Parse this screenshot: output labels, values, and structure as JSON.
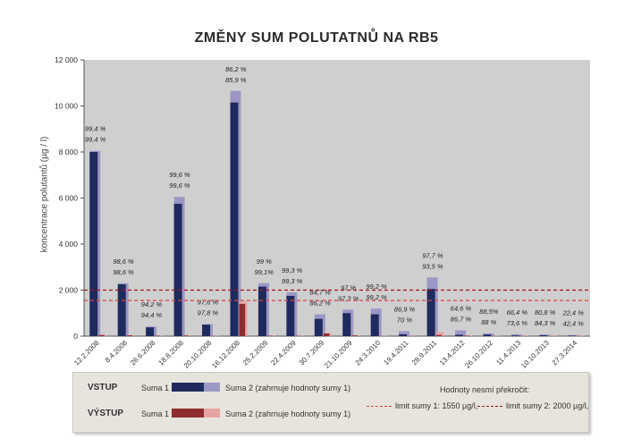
{
  "chart_data": {
    "type": "bar",
    "title": "ZMĚNY SUM POLUTATNŮ NA RB5",
    "ylabel": "koncentrace polutantů (µg / l)",
    "xlabel": "",
    "ylim": [
      0,
      12000
    ],
    "yticks": [
      "0",
      "2 000",
      "4 000",
      "6 000",
      "8 000",
      "10 000",
      "12 000"
    ],
    "categories": [
      "12.2.2008",
      "8.4.2008",
      "26.6.2008",
      "18.8.2008",
      "20.10.2008",
      "16.12.2008",
      "25.2.2009",
      "22.4.2009",
      "30.7.2009",
      "21.10.2009",
      "24.3.2010",
      "19.4.2011",
      "28.9.2011",
      "13.4.2012",
      "26.10.2012",
      "11.4.2013",
      "10.10.2013",
      "27.3.2014"
    ],
    "series": [
      {
        "name": "VSTUP Suma 1",
        "color": "#1f2a5e",
        "values": [
          8000,
          2250,
          380,
          5750,
          500,
          10150,
          2150,
          1750,
          750,
          1000,
          950,
          80,
          2050,
          60,
          70,
          30,
          40,
          20
        ]
      },
      {
        "name": "VSTUP Suma 2 (zahrnuje hodnoty sumy 1)",
        "color": "#9b97c6",
        "values": [
          8050,
          2300,
          420,
          6050,
          520,
          10650,
          2300,
          1900,
          950,
          1150,
          1200,
          220,
          2550,
          250,
          120,
          80,
          70,
          50
        ]
      },
      {
        "name": "VÝSTUP Suma 1",
        "color": "#8e2b2c",
        "values": [
          50,
          35,
          20,
          25,
          10,
          1400,
          20,
          15,
          115,
          30,
          10,
          5,
          50,
          20,
          10,
          10,
          10,
          10
        ]
      },
      {
        "name": "VÝSTUP Suma 2 (zahrnuje hodnoty sumy 1)",
        "color": "#e8a3a3",
        "values": [
          60,
          40,
          25,
          30,
          15,
          1500,
          25,
          20,
          140,
          35,
          15,
          10,
          170,
          30,
          15,
          20,
          15,
          25
        ]
      }
    ],
    "annotations": [
      [
        "99,4 %",
        "99,4 %"
      ],
      [
        "98,6 %",
        "98,6 %"
      ],
      [
        "94,2 %",
        "94,4 %"
      ],
      [
        "99,6 %",
        "99,6 %"
      ],
      [
        "97,6 %",
        "97,8 %"
      ],
      [
        "86,2 %",
        "85,9 %"
      ],
      [
        "99 %",
        "99,1%"
      ],
      [
        "99,3 %",
        "99,3 %"
      ],
      [
        "84,7 %",
        "86,2 %"
      ],
      [
        "97 %",
        "97,3 %"
      ],
      [
        "99,2 %",
        "99,2 %"
      ],
      [
        "86,9 %",
        "70 %"
      ],
      [
        "97,7 %",
        "93,5 %"
      ],
      [
        "64,6 %",
        "86,7 %"
      ],
      [
        "88,5%",
        "88 %"
      ],
      [
        "66,4 %",
        "73,6 %"
      ],
      [
        "80,8 %",
        "84,3 %"
      ],
      [
        "22,4 %",
        "42,4 %"
      ]
    ],
    "limits": [
      {
        "label": "limit sumy 1: 1550 µg/l,",
        "value": 1550,
        "color": "#d9453a"
      },
      {
        "label": "limit sumy 2: 2000 µg/l,",
        "value": 2000,
        "color": "#a0141c"
      }
    ],
    "grid": false,
    "legend_position": "bottom"
  },
  "legend": {
    "vstup_label": "VSTUP",
    "vystup_label": "VÝSTUP",
    "suma1_label_a": "Suma 1",
    "suma1_label_b": "Suma 1",
    "suma2_label_a": "Suma 2 (zahrnuje hodnoty sumy 1)",
    "suma2_label_b": "Suma 2 (zahrnuje hodnoty sumy 1)",
    "limits_heading": "Hodnoty nesmí překročit:",
    "limit1": "limit sumy 1: 1550 µg/l,",
    "limit2": "limit sumy 2: 2000 µg/l,"
  },
  "colors": {
    "plot_bg": "#cfcfcf",
    "vstup_suma1": "#1f2a5e",
    "vstup_suma2": "#9b97c6",
    "vystup_suma1": "#8e2b2c",
    "vystup_suma2": "#e8a3a3",
    "limit1": "#d9453a",
    "limit2": "#a0141c"
  }
}
